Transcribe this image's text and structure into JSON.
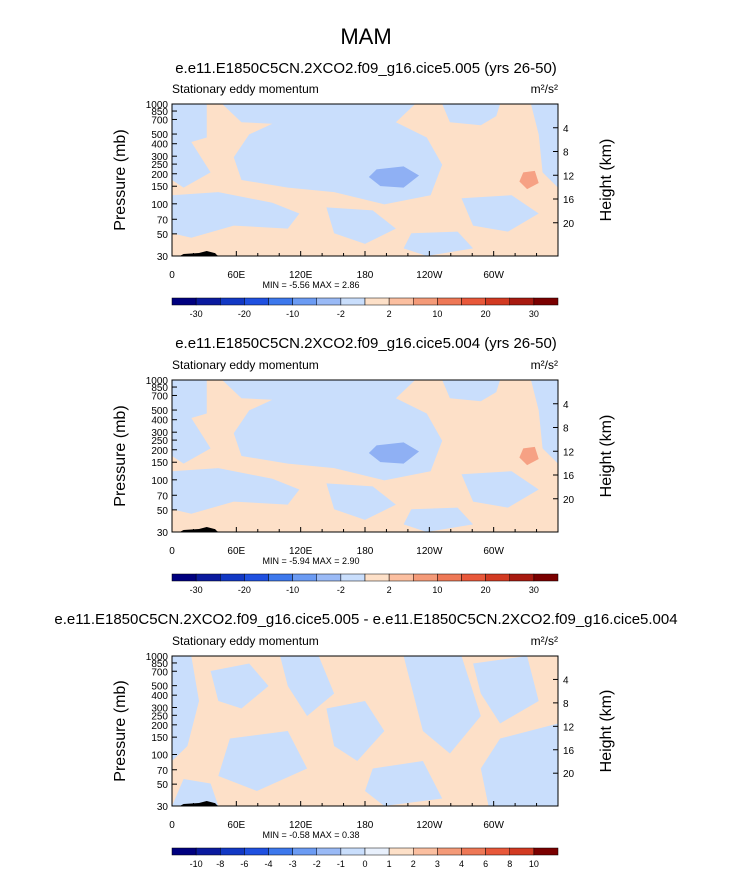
{
  "figure": {
    "title": "MAM"
  },
  "scale": {
    "blue_dark": "#00007f",
    "blue": "#1f50e0",
    "blue_light": "#c9defc",
    "white": "#ffffff",
    "peach": "#fde0c8",
    "red": "#e8583a",
    "red_dark": "#7a0000"
  },
  "chart_data": [
    {
      "type": "heatmap",
      "title": "e.e11.E1850C5CN.2XCO2.f09_g16.cice5.005 (yrs 26-50)",
      "field_label": "Stationary eddy momentum",
      "units": "m²/s²",
      "ylabel": "Pressure (mb)",
      "y2label": "Height (km)",
      "x_ticks": [
        "0",
        "60E",
        "120E",
        "180",
        "120W",
        "60W"
      ],
      "y_ticks": [
        "30",
        "50",
        "70",
        "100",
        "150",
        "200",
        "250",
        "300",
        "400",
        "500",
        "700",
        "850",
        "1000"
      ],
      "y2_ticks": [
        "20",
        "16",
        "12",
        "8",
        "4"
      ],
      "stats": "MIN =  -5.56  MAX =   2.86",
      "min": -5.56,
      "max": 2.86,
      "colorbar_labels": [
        "-30",
        "-20",
        "-10",
        "-2",
        "2",
        "10",
        "20",
        "30"
      ],
      "colorbar_colors": [
        "#00007f",
        "#0a1a9e",
        "#1238c4",
        "#1f50e0",
        "#3d78ec",
        "#6b9bf3",
        "#9abaf6",
        "#c9defc",
        "#fde0c8",
        "#fbbfa0",
        "#f49a78",
        "#ee7856",
        "#e8583a",
        "#d23a22",
        "#a81a10",
        "#7a0000"
      ]
    },
    {
      "type": "heatmap",
      "title": "e.e11.E1850C5CN.2XCO2.f09_g16.cice5.004 (yrs 26-50)",
      "field_label": "Stationary eddy momentum",
      "units": "m²/s²",
      "ylabel": "Pressure (mb)",
      "y2label": "Height (km)",
      "x_ticks": [
        "0",
        "60E",
        "120E",
        "180",
        "120W",
        "60W"
      ],
      "y_ticks": [
        "30",
        "50",
        "70",
        "100",
        "150",
        "200",
        "250",
        "300",
        "400",
        "500",
        "700",
        "850",
        "1000"
      ],
      "y2_ticks": [
        "20",
        "16",
        "12",
        "8",
        "4"
      ],
      "stats": "MIN =  -5.94  MAX =   2.90",
      "min": -5.94,
      "max": 2.9,
      "colorbar_labels": [
        "-30",
        "-20",
        "-10",
        "-2",
        "2",
        "10",
        "20",
        "30"
      ],
      "colorbar_colors": [
        "#00007f",
        "#0a1a9e",
        "#1238c4",
        "#1f50e0",
        "#3d78ec",
        "#6b9bf3",
        "#9abaf6",
        "#c9defc",
        "#fde0c8",
        "#fbbfa0",
        "#f49a78",
        "#ee7856",
        "#e8583a",
        "#d23a22",
        "#a81a10",
        "#7a0000"
      ]
    },
    {
      "type": "heatmap",
      "title": "e.e11.E1850C5CN.2XCO2.f09_g16.cice5.005 - e.e11.E1850C5CN.2XCO2.f09_g16.cice5.004",
      "field_label": "Stationary eddy momentum",
      "units": "m²/s²",
      "ylabel": "Pressure (mb)",
      "y2label": "Height (km)",
      "x_ticks": [
        "0",
        "60E",
        "120E",
        "180",
        "120W",
        "60W"
      ],
      "y_ticks": [
        "30",
        "50",
        "70",
        "100",
        "150",
        "200",
        "250",
        "300",
        "400",
        "500",
        "700",
        "850",
        "1000"
      ],
      "y2_ticks": [
        "20",
        "16",
        "12",
        "8",
        "4"
      ],
      "stats": "MIN =  -0.58  MAX =   0.38",
      "min": -0.58,
      "max": 0.38,
      "colorbar_labels": [
        "-10",
        "-8",
        "-6",
        "-4",
        "-3",
        "-2",
        "-1",
        "0",
        "1",
        "2",
        "3",
        "4",
        "6",
        "8",
        "10"
      ],
      "colorbar_colors": [
        "#00007f",
        "#0a1a9e",
        "#1238c4",
        "#1f50e0",
        "#3d78ec",
        "#6b9bf3",
        "#9abaf6",
        "#c9defc",
        "#e8f0fc",
        "#fde0c8",
        "#fbbfa0",
        "#f49a78",
        "#ee7856",
        "#e8583a",
        "#d23a22",
        "#7a0000"
      ]
    }
  ]
}
